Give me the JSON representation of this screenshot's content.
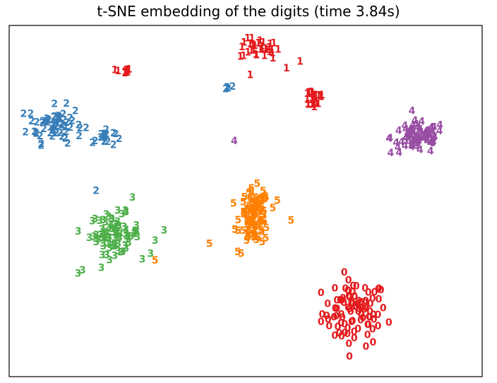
{
  "chart_data": {
    "type": "scatter",
    "title": "t-SNE embedding of the digits (time 3.84s)",
    "xlabel": "",
    "ylabel": "",
    "xlim": [
      0,
      1
    ],
    "ylim": [
      0,
      1
    ],
    "grid": false,
    "legend": "none",
    "axis_ticks": "hidden",
    "colors": {
      "0": "#e41a1c",
      "1": "#e41a1c",
      "2": "#377eb8",
      "3": "#4daf4a",
      "4": "#984ea3",
      "5": "#ff7f00"
    },
    "series": [
      {
        "label": "0",
        "clusters": [
          {
            "cx": 0.74,
            "cy": 0.16,
            "sx": 0.065,
            "sy": 0.09,
            "n": 90
          }
        ],
        "points": []
      },
      {
        "label": "1",
        "clusters": [
          {
            "cx": 0.53,
            "cy": 0.96,
            "sx": 0.04,
            "sy": 0.03,
            "n": 32
          },
          {
            "cx": 0.23,
            "cy": 0.89,
            "sx": 0.015,
            "sy": 0.008,
            "n": 10
          },
          {
            "cx": 0.65,
            "cy": 0.81,
            "sx": 0.025,
            "sy": 0.03,
            "n": 24
          }
        ],
        "points": [
          {
            "x": 0.62,
            "y": 0.92
          },
          {
            "x": 0.59,
            "y": 0.9
          },
          {
            "x": 0.56,
            "y": 0.93
          },
          {
            "x": 0.51,
            "y": 0.88
          }
        ]
      },
      {
        "label": "2",
        "clusters": [
          {
            "cx": 0.08,
            "cy": 0.73,
            "sx": 0.055,
            "sy": 0.05,
            "n": 62
          },
          {
            "cx": 0.19,
            "cy": 0.69,
            "sx": 0.02,
            "sy": 0.025,
            "n": 16
          },
          {
            "cx": 0.46,
            "cy": 0.84,
            "sx": 0.01,
            "sy": 0.004,
            "n": 4
          }
        ],
        "points": [
          {
            "x": 0.17,
            "y": 0.53
          }
        ]
      },
      {
        "label": "3",
        "clusters": [
          {
            "cx": 0.21,
            "cy": 0.4,
            "sx": 0.05,
            "sy": 0.055,
            "n": 80
          }
        ],
        "points": [
          {
            "x": 0.32,
            "y": 0.41
          },
          {
            "x": 0.3,
            "y": 0.38
          },
          {
            "x": 0.14,
            "y": 0.29
          },
          {
            "x": 0.13,
            "y": 0.28
          },
          {
            "x": 0.25,
            "y": 0.51
          },
          {
            "x": 0.29,
            "y": 0.34
          }
        ]
      },
      {
        "label": "4",
        "clusters": [
          {
            "cx": 0.88,
            "cy": 0.69,
            "sx": 0.055,
            "sy": 0.045,
            "n": 78
          }
        ],
        "points": [
          {
            "x": 0.475,
            "y": 0.68
          }
        ]
      },
      {
        "label": "5",
        "clusters": [
          {
            "cx": 0.52,
            "cy": 0.45,
            "sx": 0.03,
            "sy": 0.075,
            "n": 92
          }
        ],
        "points": [
          {
            "x": 0.6,
            "y": 0.44
          },
          {
            "x": 0.42,
            "y": 0.37
          },
          {
            "x": 0.3,
            "y": 0.32
          },
          {
            "x": 0.49,
            "y": 0.34
          },
          {
            "x": 0.57,
            "y": 0.5
          }
        ]
      }
    ]
  }
}
